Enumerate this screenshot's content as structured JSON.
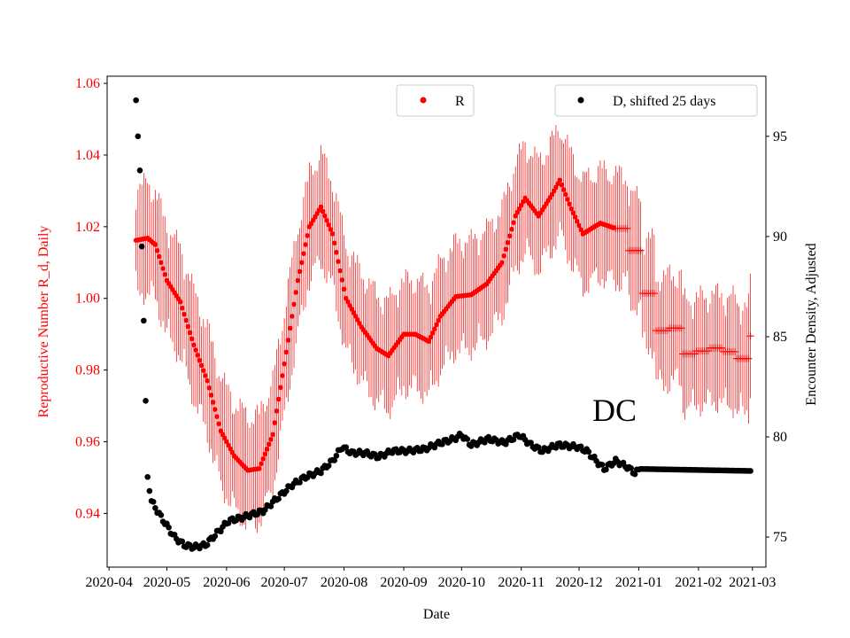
{
  "chart_data": {
    "type": "scatter",
    "region_label": "DC",
    "xlabel": "Date",
    "ylabel_left": "Reproductive Number R_d, Daily",
    "ylabel_right": "Encounter Density, Adjusted",
    "ylim_left": [
      0.925,
      1.062
    ],
    "ylim_right": [
      73.5,
      98.0
    ],
    "x_range": [
      "2020-03-31",
      "2021-03-08"
    ],
    "x_tick_labels": [
      "2020-04",
      "2020-05",
      "2020-06",
      "2020-07",
      "2020-08",
      "2020-09",
      "2020-10",
      "2020-11",
      "2020-12",
      "2021-01",
      "2021-02",
      "2021-03"
    ],
    "x_tick_dates": [
      "2020-04-01",
      "2020-05-01",
      "2020-06-01",
      "2020-07-01",
      "2020-08-01",
      "2020-09-01",
      "2020-10-01",
      "2020-11-01",
      "2020-12-01",
      "2021-01-01",
      "2021-02-01",
      "2021-03-01"
    ],
    "y_left_ticks": [
      "0.94",
      "0.96",
      "0.98",
      "1.00",
      "1.02",
      "1.04",
      "1.06"
    ],
    "y_left_tick_values": [
      0.94,
      0.96,
      0.98,
      1.0,
      1.02,
      1.04,
      1.06
    ],
    "y_right_ticks": [
      "75",
      "80",
      "85",
      "90",
      "95"
    ],
    "y_right_tick_values": [
      75,
      80,
      85,
      90,
      95
    ],
    "colors": {
      "R": "#ff0000",
      "D": "#000000"
    },
    "series": [
      {
        "name": "R",
        "legend_label": "R",
        "start_date": "2020-04-15",
        "end_date": "2021-02-28",
        "marker_change_date": "2020-12-20",
        "marker_before": "dot",
        "marker_after": "plus",
        "key_points": [
          [
            "2020-04-15",
            1.0162
          ],
          [
            "2020-04-21",
            1.0168
          ],
          [
            "2020-04-25",
            1.015
          ],
          [
            "2020-05-01",
            1.005
          ],
          [
            "2020-05-08",
            0.999
          ],
          [
            "2020-05-15",
            0.987
          ],
          [
            "2020-05-22",
            0.977
          ],
          [
            "2020-05-29",
            0.963
          ],
          [
            "2020-06-05",
            0.956
          ],
          [
            "2020-06-12",
            0.952
          ],
          [
            "2020-06-18",
            0.9525
          ],
          [
            "2020-06-25",
            0.962
          ],
          [
            "2020-07-02",
            0.985
          ],
          [
            "2020-07-08",
            1.005
          ],
          [
            "2020-07-14",
            1.02
          ],
          [
            "2020-07-20",
            1.0255
          ],
          [
            "2020-07-26",
            1.018
          ],
          [
            "2020-08-02",
            1.0
          ],
          [
            "2020-08-10",
            0.992
          ],
          [
            "2020-08-18",
            0.986
          ],
          [
            "2020-08-24",
            0.984
          ],
          [
            "2020-09-01",
            0.99
          ],
          [
            "2020-09-07",
            0.99
          ],
          [
            "2020-09-14",
            0.988
          ],
          [
            "2020-09-20",
            0.995
          ],
          [
            "2020-09-28",
            1.0005
          ],
          [
            "2020-10-06",
            1.001
          ],
          [
            "2020-10-14",
            1.004
          ],
          [
            "2020-10-22",
            1.01
          ],
          [
            "2020-10-29",
            1.023
          ],
          [
            "2020-11-03",
            1.028
          ],
          [
            "2020-11-10",
            1.023
          ],
          [
            "2020-11-17",
            1.029
          ],
          [
            "2020-11-21",
            1.033
          ],
          [
            "2020-11-27",
            1.025
          ],
          [
            "2020-12-03",
            1.018
          ],
          [
            "2020-12-12",
            1.021
          ],
          [
            "2020-12-20",
            1.0195
          ],
          [
            "2020-12-26",
            1.015
          ],
          [
            "2021-01-01",
            1.005
          ],
          [
            "2021-01-06",
            0.996
          ],
          [
            "2021-01-10",
            0.991
          ],
          [
            "2021-01-20",
            0.992
          ],
          [
            "2021-01-24",
            0.9845
          ],
          [
            "2021-02-10",
            0.9865
          ],
          [
            "2021-02-20",
            0.983
          ],
          [
            "2021-02-25",
            0.984
          ],
          [
            "2021-02-28",
            0.9895
          ]
        ]
      },
      {
        "name": "D",
        "legend_label": "D, shifted 25 days",
        "start_date": "2020-04-15",
        "end_date": "2021-02-28",
        "early_points": [
          [
            "2020-04-15",
            96.8
          ],
          [
            "2020-04-16",
            95.0
          ],
          [
            "2020-04-17",
            93.3
          ],
          [
            "2020-04-18",
            89.5
          ],
          [
            "2020-04-19",
            85.8
          ],
          [
            "2020-04-20",
            81.8
          ],
          [
            "2020-04-21",
            78.0
          ],
          [
            "2020-04-22",
            77.3
          ]
        ],
        "key_points": [
          [
            "2020-04-23",
            76.8
          ],
          [
            "2020-04-28",
            76.0
          ],
          [
            "2020-05-05",
            75.0
          ],
          [
            "2020-05-10",
            74.6
          ],
          [
            "2020-05-15",
            74.5
          ],
          [
            "2020-05-21",
            74.6
          ],
          [
            "2020-05-28",
            75.3
          ],
          [
            "2020-06-02",
            75.8
          ],
          [
            "2020-06-10",
            76.0
          ],
          [
            "2020-06-20",
            76.3
          ],
          [
            "2020-06-28",
            77.0
          ],
          [
            "2020-07-05",
            77.6
          ],
          [
            "2020-07-12",
            78.0
          ],
          [
            "2020-07-20",
            78.3
          ],
          [
            "2020-07-26",
            78.8
          ],
          [
            "2020-07-31",
            79.5
          ],
          [
            "2020-08-05",
            79.2
          ],
          [
            "2020-08-12",
            79.2
          ],
          [
            "2020-08-19",
            79.0
          ],
          [
            "2020-08-26",
            79.3
          ],
          [
            "2020-09-03",
            79.3
          ],
          [
            "2020-09-12",
            79.4
          ],
          [
            "2020-09-20",
            79.7
          ],
          [
            "2020-09-27",
            79.9
          ],
          [
            "2020-10-01",
            80.1
          ],
          [
            "2020-10-06",
            79.6
          ],
          [
            "2020-10-15",
            79.9
          ],
          [
            "2020-10-23",
            79.7
          ],
          [
            "2020-10-31",
            80.1
          ],
          [
            "2020-11-06",
            79.6
          ],
          [
            "2020-11-12",
            79.3
          ],
          [
            "2020-11-20",
            79.6
          ],
          [
            "2020-11-30",
            79.5
          ],
          [
            "2020-12-05",
            79.3
          ],
          [
            "2020-12-10",
            78.8
          ],
          [
            "2020-12-14",
            78.4
          ],
          [
            "2020-12-20",
            78.8
          ],
          [
            "2020-12-26",
            78.5
          ],
          [
            "2020-12-30",
            78.2
          ],
          [
            "2021-01-02",
            78.4
          ],
          [
            "2021-02-28",
            78.3
          ]
        ]
      }
    ]
  }
}
